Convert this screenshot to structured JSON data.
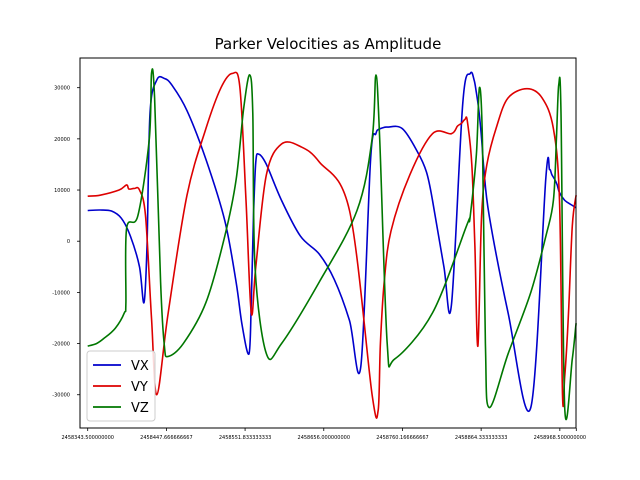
{
  "chart_data": {
    "type": "line",
    "title": "Parker Velocities as Amplitude",
    "xlabel": "",
    "ylabel": "",
    "xlim": [
      2458333.3,
      2458989.9
    ],
    "ylim": [
      -36500,
      35800
    ],
    "grid": false,
    "legend_position": "lower-left",
    "x_ticks": [
      2458343.5,
      2458447.666666667,
      2458551.833333333,
      2458656.0,
      2458760.166666667,
      2458864.333333333,
      2458968.5,
      2458990.3
    ],
    "x_tick_labels": [
      "2458343.500000000",
      "2458447.666666667",
      "2458551.833333333",
      "2458656.000000000",
      "2458760.166666667",
      "2458864.333333333",
      "2458968.500000000",
      ""
    ],
    "y_ticks": [
      -30000,
      -20000,
      -10000,
      0,
      10000,
      20000,
      30000
    ],
    "y_tick_labels": [
      "-30000",
      "-20000",
      "-10000",
      "0",
      "10000",
      "20000",
      "30000"
    ],
    "series": [
      {
        "name": "VX",
        "color": "#0000cc",
        "x": [
          2458343.5,
          2458360,
          2458375,
          2458388,
          2458400,
          2458412,
          2458418,
          2458422,
          2458426,
          2458435,
          2458445,
          2458455,
          2458475,
          2458500,
          2458525,
          2458540,
          2458548,
          2458557,
          2458560,
          2458563,
          2458566,
          2458570,
          2458580,
          2458600,
          2458625,
          2458650,
          2458670,
          2458690,
          2458705,
          2458718,
          2458725,
          2458728,
          2458731,
          2458735,
          2458740,
          2458760,
          2458780,
          2458792,
          2458800,
          2458815,
          2458825,
          2458840,
          2458850,
          2458855,
          2458858,
          2458861,
          2458865,
          2458868,
          2458875,
          2458900,
          2458930,
          2458950,
          2458955,
          2458958,
          2458962,
          2458965,
          2458968,
          2458975,
          2458985,
          2458990
        ],
        "y": [
          6000,
          6100,
          5900,
          4500,
          1000,
          -5000,
          -12000,
          -1000,
          25000,
          31500,
          31800,
          30500,
          25500,
          16000,
          4000,
          -8000,
          -16500,
          -22000,
          -12000,
          5000,
          15500,
          17000,
          15000,
          8000,
          1000,
          -2500,
          -7500,
          -15500,
          -24500,
          16000,
          21000,
          21800,
          22000,
          22200,
          22300,
          22000,
          17500,
          13500,
          8000,
          -5000,
          -12500,
          27000,
          32800,
          31500,
          29000,
          26000,
          20000,
          14000,
          5000,
          -14000,
          -32500,
          12500,
          14000,
          13000,
          12000,
          11000,
          9500,
          8000,
          7000,
          6500
        ]
      },
      {
        "name": "VY",
        "color": "#dd0000",
        "x": [
          2458343.5,
          2458360,
          2458385,
          2458395,
          2458398,
          2458405,
          2458412,
          2458420,
          2458428,
          2458435,
          2458450,
          2458475,
          2458500,
          2458520,
          2458535,
          2458545,
          2458553,
          2458560,
          2458566,
          2458580,
          2458600,
          2458625,
          2458650,
          2458690,
          2458720,
          2458728,
          2458731,
          2458736,
          2458745,
          2458770,
          2458800,
          2458825,
          2458833,
          2458838,
          2458843,
          2458846,
          2458852,
          2458856,
          2458860,
          2458865,
          2458872,
          2458885,
          2458900,
          2458925,
          2458945,
          2458960,
          2458968,
          2458972,
          2458975,
          2458980,
          2458985,
          2458990
        ],
        "y": [
          8800,
          9000,
          10000,
          11000,
          10200,
          10300,
          10000,
          5000,
          -15000,
          -30000,
          -14000,
          9000,
          22000,
          30000,
          32800,
          30000,
          8000,
          -14000,
          -5000,
          13000,
          19000,
          18500,
          15500,
          6000,
          -30000,
          -33000,
          -20000,
          -8000,
          2000,
          13000,
          21000,
          21000,
          22500,
          23000,
          23800,
          23500,
          15000,
          -1000,
          -20500,
          5000,
          15000,
          22500,
          28000,
          29800,
          28000,
          22000,
          8000,
          -30000,
          -26500,
          -14000,
          3000,
          9000
        ]
      },
      {
        "name": "VZ",
        "color": "#007700",
        "x": [
          2458343.5,
          2458355,
          2458365,
          2458380,
          2458392,
          2458394,
          2458395,
          2458410,
          2458425,
          2458428,
          2458432,
          2458440,
          2458445,
          2458450,
          2458470,
          2458500,
          2458525,
          2458540,
          2458550,
          2458558,
          2458562,
          2458565,
          2458580,
          2458600,
          2458650,
          2458700,
          2458720,
          2458725,
          2458730,
          2458740,
          2458750,
          2458800,
          2458845,
          2458848,
          2458850,
          2458858,
          2458862,
          2458866,
          2458870,
          2458875,
          2458900,
          2458930,
          2458950,
          2458960,
          2458964,
          2458967,
          2458970,
          2458975,
          2458985,
          2458990
        ],
        "y": [
          -20500,
          -20000,
          -19000,
          -17000,
          -14000,
          -12000,
          2500,
          5000,
          20000,
          32800,
          28000,
          -8000,
          -20500,
          -22500,
          -20000,
          -12000,
          1000,
          12000,
          26000,
          32500,
          25000,
          -5000,
          -22000,
          -20000,
          -8000,
          6000,
          20000,
          32500,
          20000,
          -20000,
          -23000,
          -14000,
          3000,
          4000,
          5000,
          17000,
          30000,
          20000,
          -20000,
          -32500,
          -22000,
          -10000,
          1000,
          8000,
          20000,
          30500,
          25000,
          -32500,
          -23000,
          -16000
        ]
      }
    ]
  }
}
